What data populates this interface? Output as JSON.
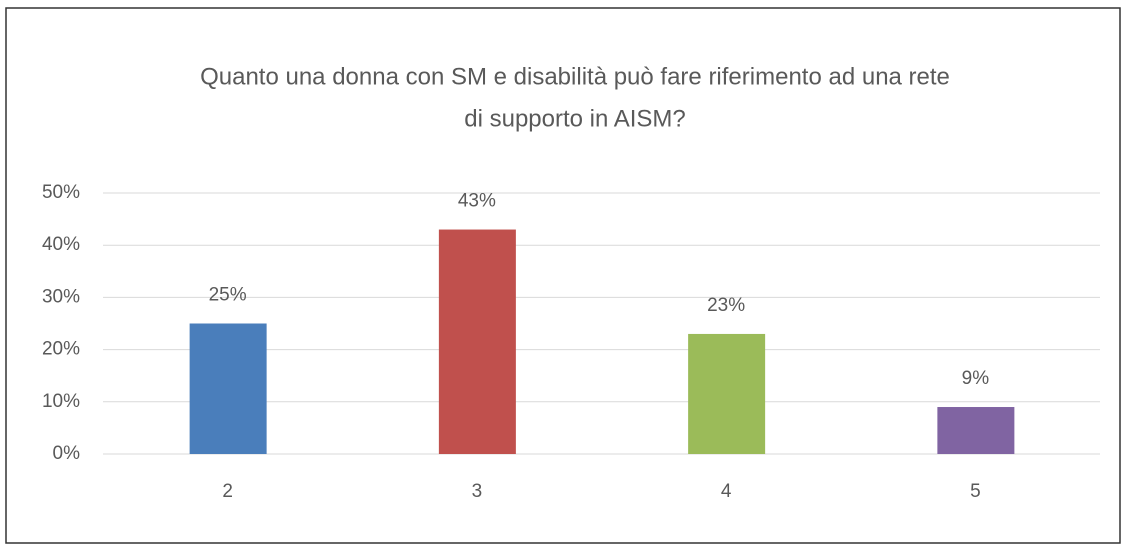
{
  "chart_data": {
    "type": "bar",
    "title": [
      "Quanto una donna con SM e disabilità può fare riferimento ad una rete",
      "di supporto in AISM?"
    ],
    "categories": [
      "2",
      "3",
      "4",
      "5"
    ],
    "values": [
      25,
      43,
      23,
      9
    ],
    "value_labels": [
      "25%",
      "43%",
      "23%",
      "9%"
    ],
    "colors": [
      "#4a7ebb",
      "#c0504d",
      "#9bbb59",
      "#8064a2"
    ],
    "ylim": [
      0,
      50
    ],
    "yticks": [
      {
        "value": 0,
        "label": "0%"
      },
      {
        "value": 10,
        "label": "10%"
      },
      {
        "value": 20,
        "label": "20%"
      },
      {
        "value": 30,
        "label": "30%"
      },
      {
        "value": 40,
        "label": "40%"
      },
      {
        "value": 50,
        "label": "50%"
      }
    ],
    "grid": true
  }
}
